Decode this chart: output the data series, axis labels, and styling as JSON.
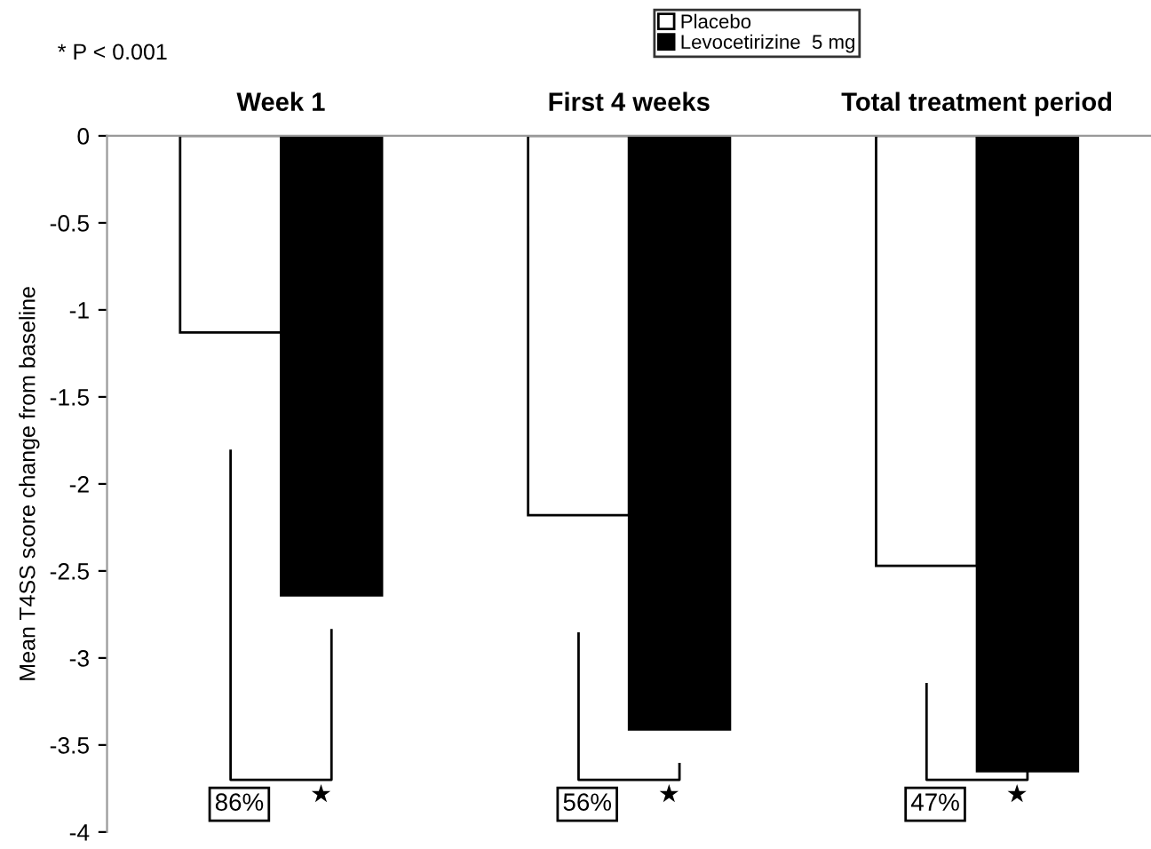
{
  "chart_data": {
    "type": "bar",
    "categories": [
      "Week 1",
      "First 4 weeks",
      "Total treatment period"
    ],
    "ylabel": "Mean T4SS score change from baseline",
    "series": [
      {
        "name": "Placebo",
        "color": "#ffffff",
        "values": [
          -1.13,
          -2.18,
          -2.47
        ]
      },
      {
        "name": "Levocetirizine  5 mg",
        "color": "#000000",
        "values": [
          -2.64,
          -3.41,
          -3.65
        ]
      }
    ],
    "ylim": [
      -4,
      0
    ],
    "yticks": [
      0,
      -0.5,
      -1,
      -1.5,
      -2,
      -2.5,
      -3,
      -3.5,
      -4
    ],
    "legend": "top right",
    "grid": false,
    "annotations": [
      "* P < 0.001",
      "86%",
      "★",
      "56%",
      "★",
      "47%",
      "★"
    ]
  }
}
